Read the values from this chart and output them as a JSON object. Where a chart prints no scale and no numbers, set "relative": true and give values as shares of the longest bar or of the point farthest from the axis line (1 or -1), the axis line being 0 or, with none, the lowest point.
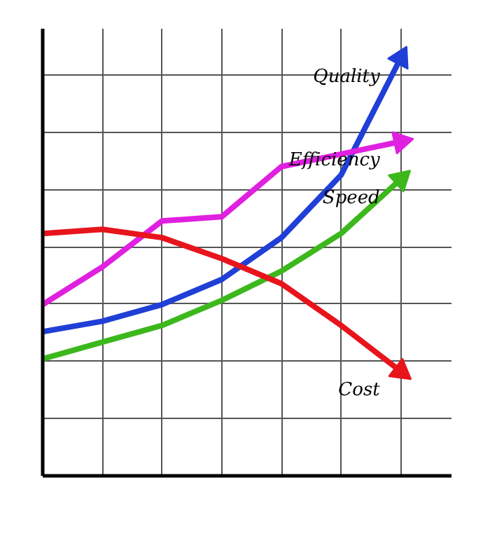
{
  "chart_data": {
    "type": "line",
    "relative": true,
    "grid": true,
    "legend": "right",
    "marker": "none",
    "line_style": "solid",
    "categories": [
      null,
      null,
      null,
      null,
      null,
      null,
      null
    ],
    "series": [
      {
        "name": "Quality",
        "color": "#1f3fd6",
        "values": [
          0.345,
          0.37,
          0.41,
          0.47,
          0.57,
          0.72,
          1.0
        ]
      },
      {
        "name": "Efficiency",
        "color": "#e020e0",
        "values": [
          0.41,
          0.5,
          0.61,
          0.62,
          0.74,
          0.77,
          0.8
        ]
      },
      {
        "name": "Speed",
        "color": "#3cb81c",
        "values": [
          0.28,
          0.32,
          0.36,
          0.42,
          0.49,
          0.58,
          0.71
        ]
      },
      {
        "name": "Cost",
        "color": "#e8141c",
        "values": [
          0.58,
          0.59,
          0.57,
          0.52,
          0.46,
          0.36,
          0.25
        ]
      }
    ]
  }
}
